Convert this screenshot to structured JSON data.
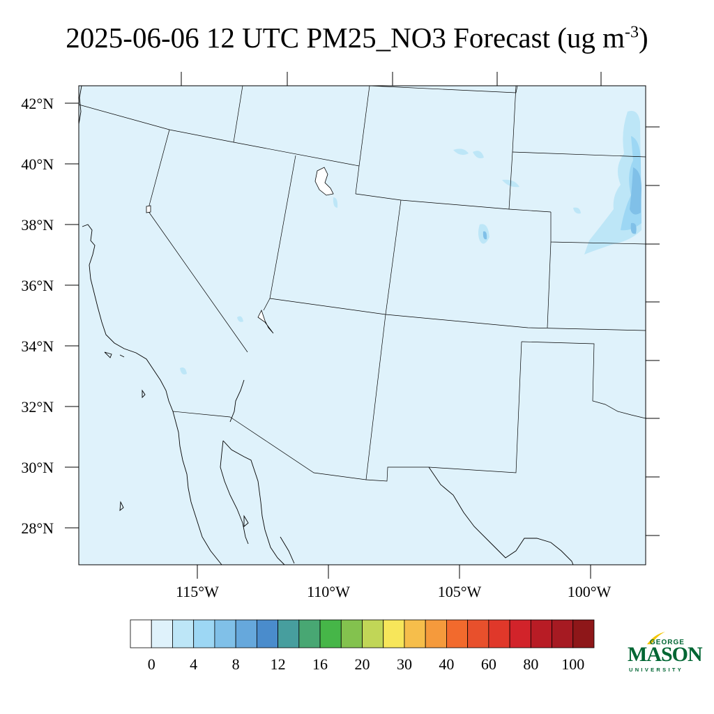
{
  "title": {
    "text": "2025-06-06 12 UTC PM25_NO3 Forecast (ug m",
    "superscript": "-3",
    "suffix": ")"
  },
  "map": {
    "variable": "PM25_NO3",
    "units": "ug m-3",
    "background_fill": "#dff2fb",
    "lat_labels": [
      "42°N",
      "40°N",
      "38°N",
      "36°N",
      "34°N",
      "32°N",
      "30°N",
      "28°N"
    ],
    "lon_labels": [
      "115°W",
      "110°W",
      "105°W",
      "100°W"
    ]
  },
  "colorbar": {
    "colors": [
      "#ffffff",
      "#dff2fb",
      "#bde6f7",
      "#9dd7f4",
      "#80c0e8",
      "#66a8dc",
      "#4a8ccc",
      "#479e9e",
      "#48a773",
      "#46b648",
      "#83c24e",
      "#c1d657",
      "#f7e65a",
      "#f6be4b",
      "#f59a3c",
      "#f26a2d",
      "#e8502c",
      "#e0382a",
      "#d2232a",
      "#b81c25",
      "#a61a22",
      "#8e1719"
    ],
    "labels": [
      "0",
      "4",
      "8",
      "12",
      "16",
      "20",
      "30",
      "40",
      "60",
      "80",
      "100"
    ]
  },
  "logo": {
    "line1": "GEORGE",
    "line2": "MASON",
    "line3": "UNIVERSITY",
    "color": "#006633",
    "accent": "#f2c500"
  }
}
